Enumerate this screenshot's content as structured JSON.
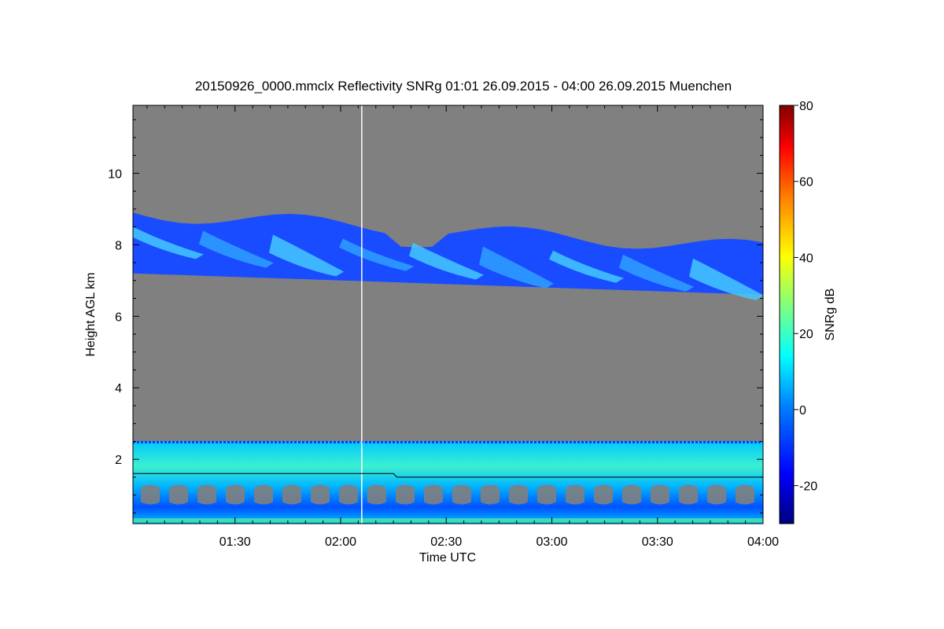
{
  "chart_data": {
    "type": "heatmap",
    "title": "20150926_0000.mmclx Reflectivity SNRg   01:01 26.09.2015 - 04:00 26.09.2015 Muenchen",
    "xlabel": "Time UTC",
    "ylabel": "Height AGL km",
    "colorbar_label": "SNRg dB",
    "x_range_hours": [
      1.0167,
      4.0
    ],
    "x_ticks": [
      "01:30",
      "02:00",
      "02:30",
      "03:00",
      "03:30",
      "04:00"
    ],
    "ylim": [
      0.2,
      11.9
    ],
    "y_ticks": [
      "2",
      "4",
      "6",
      "8",
      "10"
    ],
    "colorbar_range": [
      -30,
      80
    ],
    "colorbar_ticks": [
      "-20",
      "0",
      "20",
      "40",
      "60",
      "80"
    ],
    "background_color": "#808080",
    "features": [
      {
        "name": "cirrus layer",
        "time_range": [
          "01:01",
          "04:00"
        ],
        "top_km_start": 8.9,
        "top_km_end": 7.9,
        "base_km_start": 7.2,
        "base_km_end": 6.6,
        "snr_db_range": [
          -25,
          10
        ]
      },
      {
        "name": "boundary layer echo",
        "time_range": [
          "01:01",
          "04:00"
        ],
        "top_km": 2.5,
        "base_km": 0.2,
        "snr_db_range": [
          -20,
          30
        ]
      }
    ],
    "lines": [
      {
        "name": "vertical marker",
        "time": "02:06",
        "color": "#ffffff"
      },
      {
        "name": "boundary layer top",
        "heights_km": [
          1.6,
          1.6,
          1.5,
          1.5
        ],
        "times": [
          "01:01",
          "02:15",
          "02:16",
          "04:00"
        ],
        "color": "#000000"
      }
    ]
  }
}
